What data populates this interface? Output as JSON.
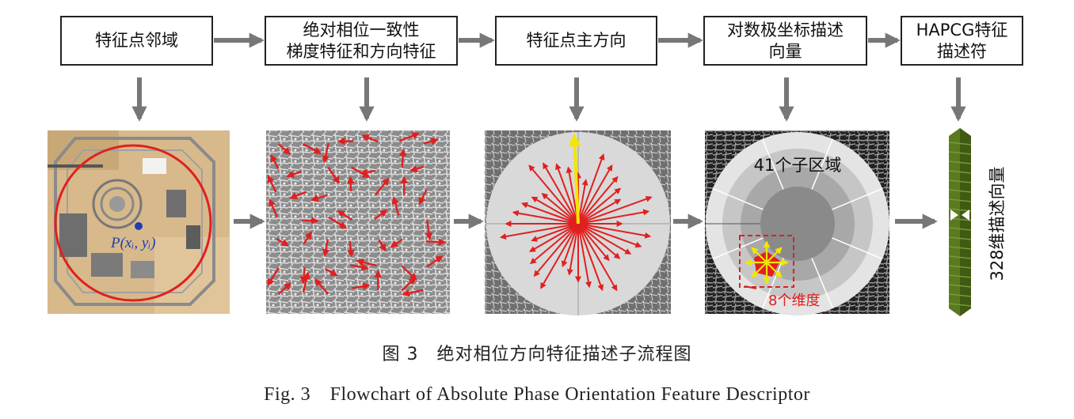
{
  "flow_steps": [
    {
      "label": "特征点邻域"
    },
    {
      "label": "绝对相位一致性\n梯度特征和方向特征"
    },
    {
      "label": "特征点主方向"
    },
    {
      "label": "对数极坐标描述\n向量"
    },
    {
      "label": "HAPCG特征\n描述符"
    }
  ],
  "panels": {
    "neighborhood": {
      "point_label": "P(xᵢ, yᵢ)"
    },
    "log_polar": {
      "subregions_label": "41个子区域",
      "dimensions_label": "8个维度"
    },
    "descriptor": {
      "vector_label": "328维描述向量"
    }
  },
  "colors": {
    "accent": "#e02020",
    "arrow_gray": "#777777",
    "highlight_yellow": "#f2e600",
    "descriptor_green": "#5a7a1f",
    "point_blue": "#1f3fb0"
  },
  "caption": {
    "cn": "图 3　绝对相位方向特征描述子流程图",
    "en": "Fig. 3　Flowchart of Absolute Phase Orientation Feature Descriptor"
  }
}
